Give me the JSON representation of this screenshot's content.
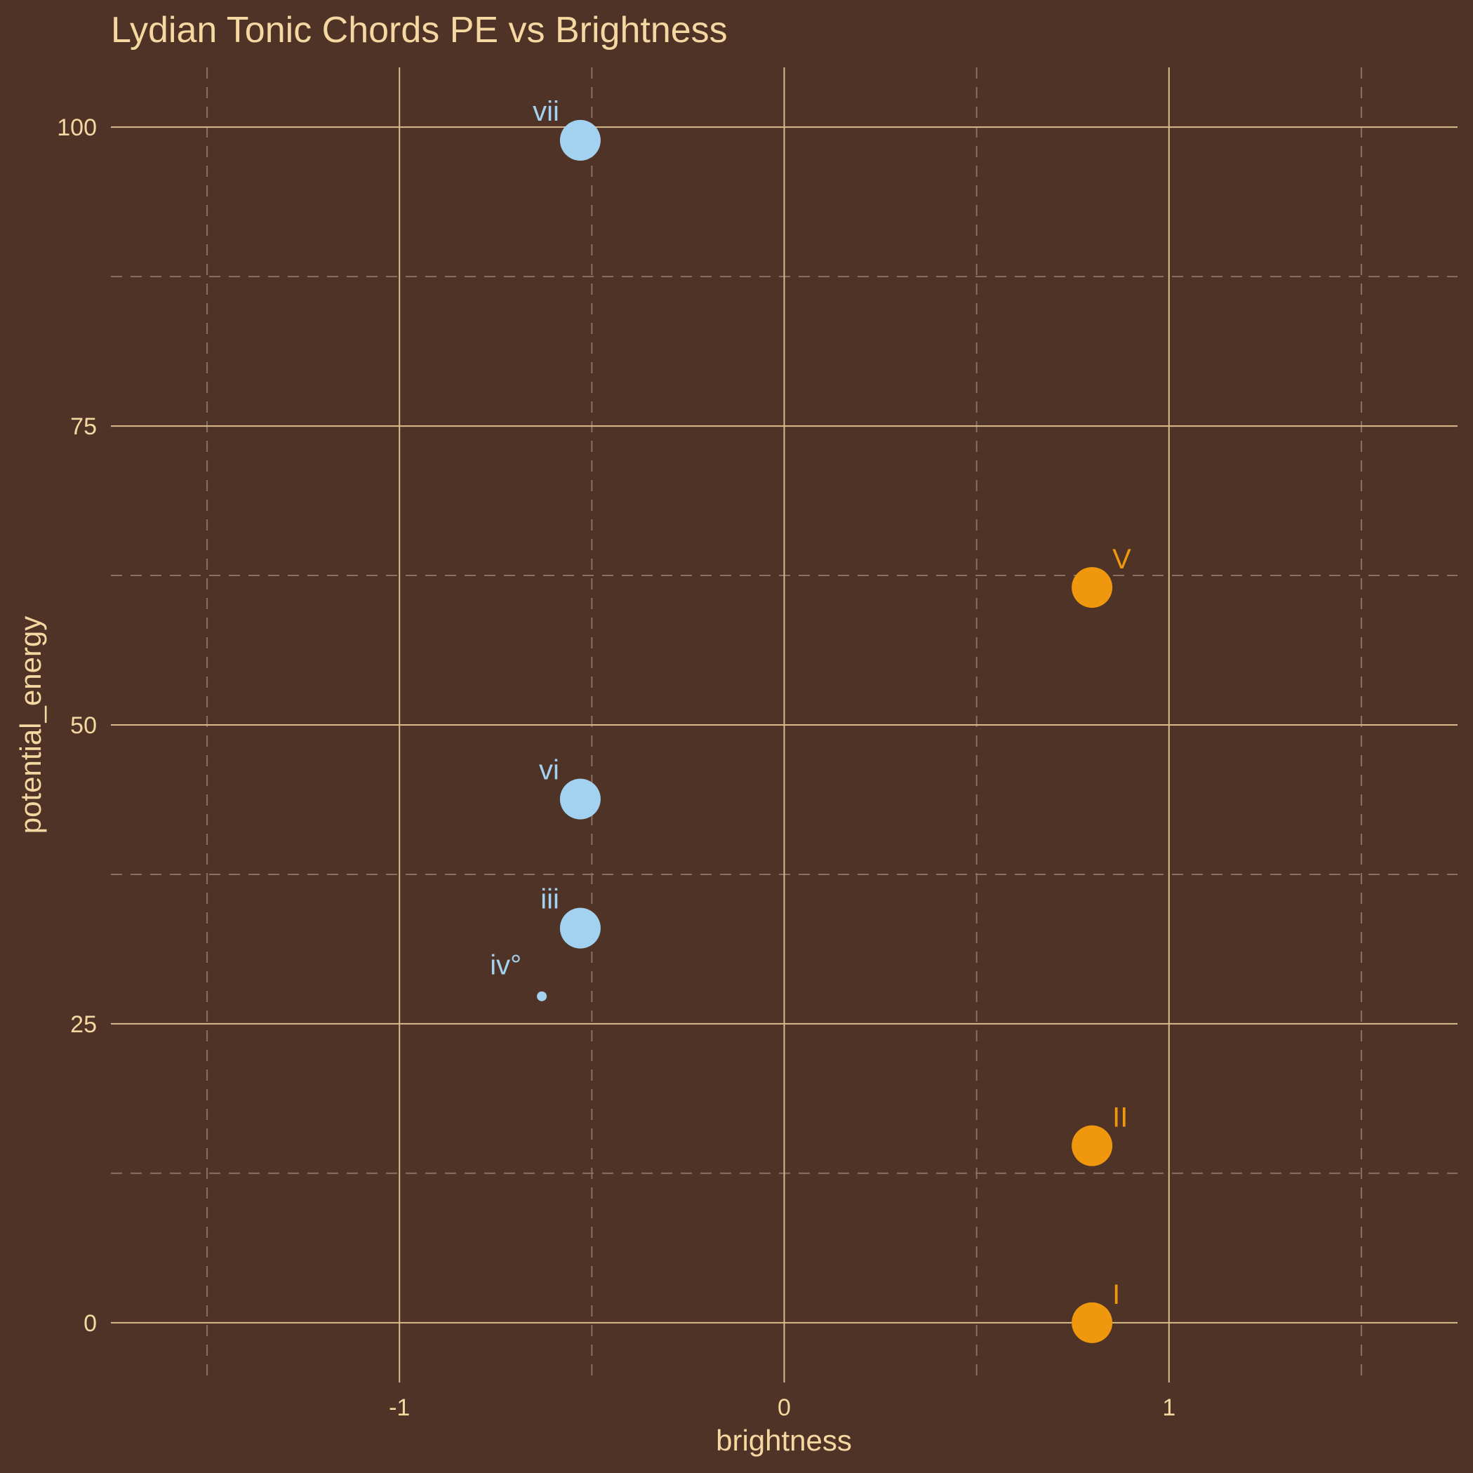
{
  "chart_data": {
    "type": "scatter",
    "title": "Lydian Tonic Chords PE vs Brightness",
    "xlabel": "brightness",
    "ylabel": "potential_energy",
    "xlim": [
      -1.75,
      1.75
    ],
    "ylim": [
      -5,
      105
    ],
    "x_ticks": [
      {
        "value": -1,
        "label": "-1"
      },
      {
        "value": 0,
        "label": "0"
      },
      {
        "value": 1,
        "label": "1"
      }
    ],
    "y_ticks": [
      {
        "value": 0,
        "label": "0"
      },
      {
        "value": 25,
        "label": "25"
      },
      {
        "value": 50,
        "label": "50"
      },
      {
        "value": 75,
        "label": "75"
      },
      {
        "value": 100,
        "label": "100"
      }
    ],
    "x_minor_ticks": [
      -1.5,
      -0.5,
      0.5,
      1.5
    ],
    "y_minor_ticks": [
      12.5,
      37.5,
      62.5,
      87.5
    ],
    "grid": true,
    "legend": "none",
    "colors": {
      "background": "#4f3327",
      "text": "#f5d7a1",
      "grid_major": "#d9bb8a",
      "grid_minor": "#8a7060",
      "bright": "#ef980e",
      "dark": "#a2d2f0"
    },
    "points": [
      {
        "label": "vii",
        "x": -0.53,
        "y": 98.9,
        "group": "dark",
        "size": "large"
      },
      {
        "label": "V",
        "x": 0.8,
        "y": 61.5,
        "group": "bright",
        "size": "large"
      },
      {
        "label": "vi",
        "x": -0.53,
        "y": 43.8,
        "group": "dark",
        "size": "large"
      },
      {
        "label": "iii",
        "x": -0.53,
        "y": 33.0,
        "group": "dark",
        "size": "large"
      },
      {
        "label": "iv°",
        "x": -0.63,
        "y": 27.3,
        "group": "dark",
        "size": "small"
      },
      {
        "label": "II",
        "x": 0.8,
        "y": 14.8,
        "group": "bright",
        "size": "large"
      },
      {
        "label": "I",
        "x": 0.8,
        "y": 0.0,
        "group": "bright",
        "size": "large"
      }
    ]
  }
}
